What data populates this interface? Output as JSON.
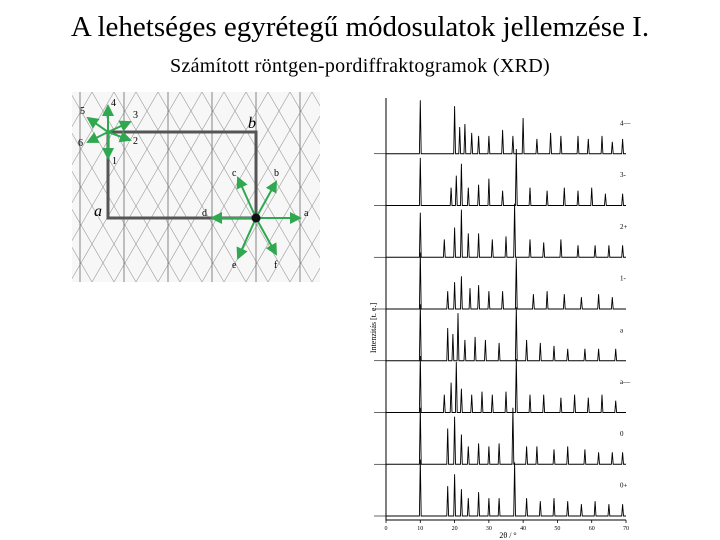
{
  "title": "A lehetséges egyrétegű módosulatok jellemzése I.",
  "subtitle": "Számított röntgen-pordiffraktogramok (XRD)",
  "lattice": {
    "cell_labels": {
      "a": "a",
      "b": "b"
    },
    "left_arrow_labels": [
      "4",
      "5",
      "3",
      "6",
      "2",
      "1"
    ],
    "right_arrow_labels": [
      "c",
      "b",
      "d",
      "a",
      "e",
      "f"
    ],
    "colors": {
      "arrow": "#2fa84f",
      "cell": "#555555",
      "lines": "#9a9a9a"
    }
  },
  "chart_data": {
    "type": "line",
    "title": "",
    "xlabel": "2θ / °",
    "ylabel": "Intenzitás [t. e.]",
    "xlim": [
      0,
      70
    ],
    "x_ticks": [
      "0",
      "10",
      "20",
      "30",
      "40",
      "50",
      "60",
      "70"
    ],
    "series": [
      {
        "name": "4—",
        "peaks": [
          [
            10,
            0.9
          ],
          [
            20,
            0.8
          ],
          [
            21.5,
            0.45
          ],
          [
            23,
            0.5
          ],
          [
            25,
            0.35
          ],
          [
            27,
            0.3
          ],
          [
            30,
            0.3
          ],
          [
            34,
            0.4
          ],
          [
            37,
            0.3
          ],
          [
            40,
            0.6
          ],
          [
            44,
            0.25
          ],
          [
            48,
            0.35
          ],
          [
            51,
            0.3
          ],
          [
            56,
            0.3
          ],
          [
            59,
            0.25
          ],
          [
            63,
            0.3
          ],
          [
            66,
            0.2
          ],
          [
            69,
            0.25
          ]
        ]
      },
      {
        "name": "3-",
        "peaks": [
          [
            10,
            0.8
          ],
          [
            19,
            0.3
          ],
          [
            20.5,
            0.5
          ],
          [
            22,
            0.7
          ],
          [
            24,
            0.3
          ],
          [
            27,
            0.35
          ],
          [
            30,
            0.45
          ],
          [
            34,
            0.25
          ],
          [
            38,
            0.95
          ],
          [
            42,
            0.3
          ],
          [
            47,
            0.25
          ],
          [
            52,
            0.3
          ],
          [
            56,
            0.25
          ],
          [
            60,
            0.3
          ],
          [
            64,
            0.2
          ],
          [
            69,
            0.2
          ]
        ]
      },
      {
        "name": "2+",
        "peaks": [
          [
            10,
            0.75
          ],
          [
            17,
            0.3
          ],
          [
            20,
            0.5
          ],
          [
            22,
            0.8
          ],
          [
            24,
            0.4
          ],
          [
            27,
            0.4
          ],
          [
            31,
            0.3
          ],
          [
            35,
            0.35
          ],
          [
            37.5,
            0.9
          ],
          [
            42,
            0.3
          ],
          [
            46,
            0.25
          ],
          [
            51,
            0.3
          ],
          [
            56,
            0.2
          ],
          [
            61,
            0.2
          ],
          [
            65,
            0.2
          ],
          [
            69,
            0.2
          ]
        ]
      },
      {
        "name": "1-",
        "peaks": [
          [
            10,
            0.95
          ],
          [
            18,
            0.3
          ],
          [
            20,
            0.45
          ],
          [
            22,
            0.55
          ],
          [
            24.5,
            0.35
          ],
          [
            27,
            0.4
          ],
          [
            30,
            0.3
          ],
          [
            34,
            0.3
          ],
          [
            38,
            0.85
          ],
          [
            43,
            0.25
          ],
          [
            47,
            0.3
          ],
          [
            52,
            0.25
          ],
          [
            57,
            0.2
          ],
          [
            62,
            0.25
          ],
          [
            66,
            0.2
          ]
        ]
      },
      {
        "name": "a",
        "peaks": [
          [
            10,
            0.95
          ],
          [
            18,
            0.55
          ],
          [
            19.5,
            0.45
          ],
          [
            21,
            0.8
          ],
          [
            23,
            0.35
          ],
          [
            26,
            0.4
          ],
          [
            29,
            0.35
          ],
          [
            33,
            0.3
          ],
          [
            38,
            0.9
          ],
          [
            41,
            0.35
          ],
          [
            45,
            0.3
          ],
          [
            49,
            0.25
          ],
          [
            53,
            0.2
          ],
          [
            58,
            0.2
          ],
          [
            62,
            0.2
          ],
          [
            67,
            0.2
          ]
        ]
      },
      {
        "name": "a—",
        "peaks": [
          [
            10,
            0.95
          ],
          [
            17,
            0.3
          ],
          [
            19,
            0.5
          ],
          [
            20.5,
            0.85
          ],
          [
            22,
            0.4
          ],
          [
            25,
            0.3
          ],
          [
            28,
            0.35
          ],
          [
            31,
            0.3
          ],
          [
            35,
            0.35
          ],
          [
            38,
            0.9
          ],
          [
            42,
            0.3
          ],
          [
            46,
            0.3
          ],
          [
            51,
            0.25
          ],
          [
            55,
            0.3
          ],
          [
            59,
            0.25
          ],
          [
            63,
            0.3
          ],
          [
            67,
            0.2
          ]
        ]
      },
      {
        "name": "0",
        "peaks": [
          [
            10,
            0.95
          ],
          [
            18,
            0.6
          ],
          [
            20,
            0.8
          ],
          [
            22,
            0.5
          ],
          [
            24,
            0.3
          ],
          [
            27,
            0.35
          ],
          [
            30,
            0.3
          ],
          [
            33,
            0.35
          ],
          [
            37,
            0.95
          ],
          [
            41,
            0.3
          ],
          [
            44,
            0.3
          ],
          [
            49,
            0.25
          ],
          [
            53,
            0.3
          ],
          [
            58,
            0.25
          ],
          [
            62,
            0.2
          ],
          [
            66,
            0.2
          ],
          [
            69,
            0.2
          ]
        ]
      },
      {
        "name": "0+",
        "peaks": [
          [
            10,
            0.95
          ],
          [
            18,
            0.5
          ],
          [
            20,
            0.7
          ],
          [
            22,
            0.45
          ],
          [
            24,
            0.3
          ],
          [
            27,
            0.4
          ],
          [
            30,
            0.3
          ],
          [
            33,
            0.3
          ],
          [
            37.5,
            0.9
          ],
          [
            41,
            0.3
          ],
          [
            45,
            0.25
          ],
          [
            49,
            0.3
          ],
          [
            53,
            0.25
          ],
          [
            57,
            0.2
          ],
          [
            61,
            0.25
          ],
          [
            65,
            0.2
          ],
          [
            69,
            0.2
          ]
        ]
      }
    ]
  }
}
